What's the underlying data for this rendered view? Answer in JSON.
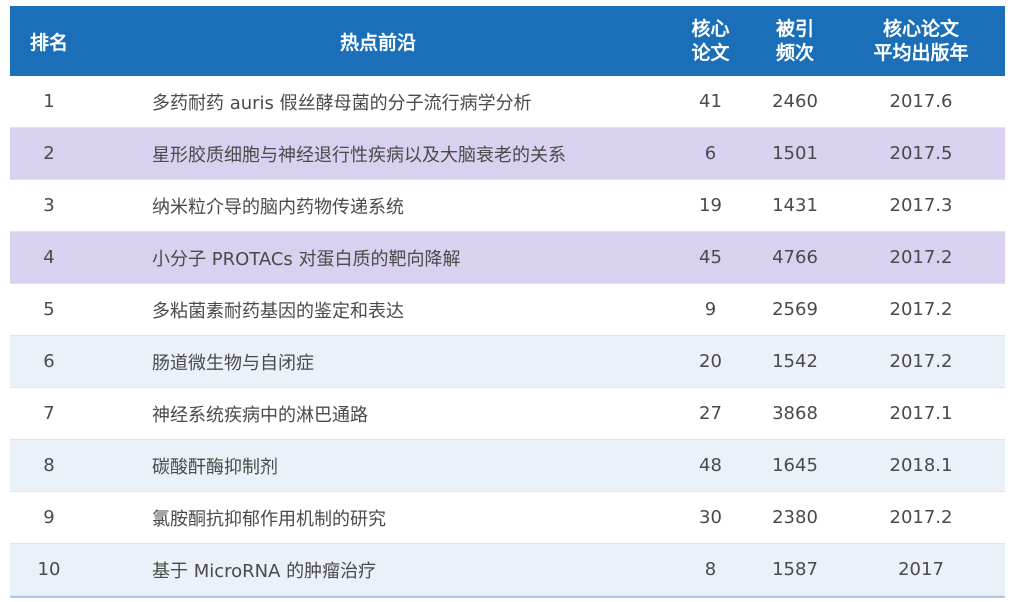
{
  "table": {
    "headers": {
      "rank": "排名",
      "topic": "热点前沿",
      "core_line1": "核心",
      "core_line2": "论文",
      "cite_line1": "被引",
      "cite_line2": "频次",
      "year_line1": "核心论文",
      "year_line2": "平均出版年"
    },
    "rows": [
      {
        "rank": "1",
        "topic": "多药耐药 auris 假丝酵母菌的分子流行病学分析",
        "core": "41",
        "cite": "2460",
        "year": "2017.6"
      },
      {
        "rank": "2",
        "topic": "星形胶质细胞与神经退行性疾病以及大脑衰老的关系",
        "core": "6",
        "cite": "1501",
        "year": "2017.5"
      },
      {
        "rank": "3",
        "topic": "纳米粒介导的脑内药物传递系统",
        "core": "19",
        "cite": "1431",
        "year": "2017.3"
      },
      {
        "rank": "4",
        "topic": "小分子 PROTACs 对蛋白质的靶向降解",
        "core": "45",
        "cite": "4766",
        "year": "2017.2"
      },
      {
        "rank": "5",
        "topic": "多粘菌素耐药基因的鉴定和表达",
        "core": "9",
        "cite": "2569",
        "year": "2017.2"
      },
      {
        "rank": "6",
        "topic": "肠道微生物与自闭症",
        "core": "20",
        "cite": "1542",
        "year": "2017.2"
      },
      {
        "rank": "7",
        "topic": "神经系统疾病中的淋巴通路",
        "core": "27",
        "cite": "3868",
        "year": "2017.1"
      },
      {
        "rank": "8",
        "topic": "碳酸酐酶抑制剂",
        "core": "48",
        "cite": "1645",
        "year": "2018.1"
      },
      {
        "rank": "9",
        "topic": "氯胺酮抗抑郁作用机制的研究",
        "core": "30",
        "cite": "2380",
        "year": "2017.2"
      },
      {
        "rank": "10",
        "topic": "基于 MicroRNA 的肿瘤治疗",
        "core": "8",
        "cite": "1587",
        "year": "2017"
      }
    ]
  },
  "colors": {
    "header_bg": "#1a6fb8",
    "row_purple": "#d9d1ef",
    "row_blue": "#eaf1f8"
  }
}
